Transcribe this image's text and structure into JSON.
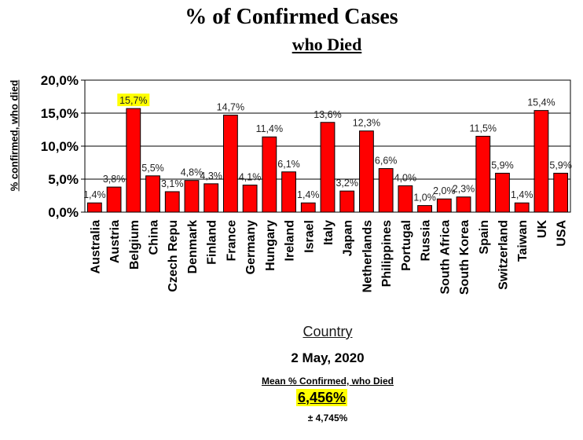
{
  "title": "% of Confirmed Cases",
  "subtitle": "who Died",
  "date": "2 May, 2020",
  "mean_label": "Mean % Confirmed, who Died",
  "mean_value": "6,456%",
  "sd_value": "± 4,745%",
  "colors": {
    "bar": "#ff0000",
    "bar_edge": "#000000",
    "highlight": "#ffff00",
    "grid": "#000000"
  },
  "chart_data": {
    "type": "bar",
    "xlabel": "Country",
    "ylabel": "% confirmed, who died",
    "ylim": [
      0,
      20
    ],
    "yticks": [
      "0,0%",
      "5,0%",
      "10,0%",
      "15,0%",
      "20,0%"
    ],
    "grid": true,
    "categories": [
      "Australia",
      "Austria",
      "Belgium",
      "China",
      "Czech Repu",
      "Denmark",
      "Finland",
      "France",
      "Germany",
      "Hungary",
      "Ireland",
      "Israel",
      "Italy",
      "Japan",
      "Netherlands",
      "Philippines",
      "Portugal",
      "Russia",
      "South Africa",
      "South Korea",
      "Spain",
      "Switzerland",
      "Taiwan",
      "UK",
      "USA"
    ],
    "values": [
      1.4,
      3.8,
      15.7,
      5.5,
      3.1,
      4.8,
      4.3,
      14.7,
      4.1,
      11.4,
      6.1,
      1.4,
      13.6,
      3.2,
      12.3,
      6.6,
      4.0,
      1.0,
      2.0,
      2.3,
      11.5,
      5.9,
      1.4,
      15.4,
      5.9
    ],
    "labels": [
      "1,4%",
      "3,8%",
      "15,7%",
      "5,5%",
      "3,1%",
      "4,8%",
      "4,3%",
      "14,7%",
      "4,1%",
      "11,4%",
      "6,1%",
      "1,4%",
      "13,6%",
      "3,2%",
      "12,3%",
      "6,6%",
      "4,0%",
      "1,0%",
      "2,0%",
      "2,3%",
      "11,5%",
      "5,9%",
      "1,4%",
      "15,4%",
      "5,9%"
    ],
    "highlighted_label": "Belgium"
  }
}
